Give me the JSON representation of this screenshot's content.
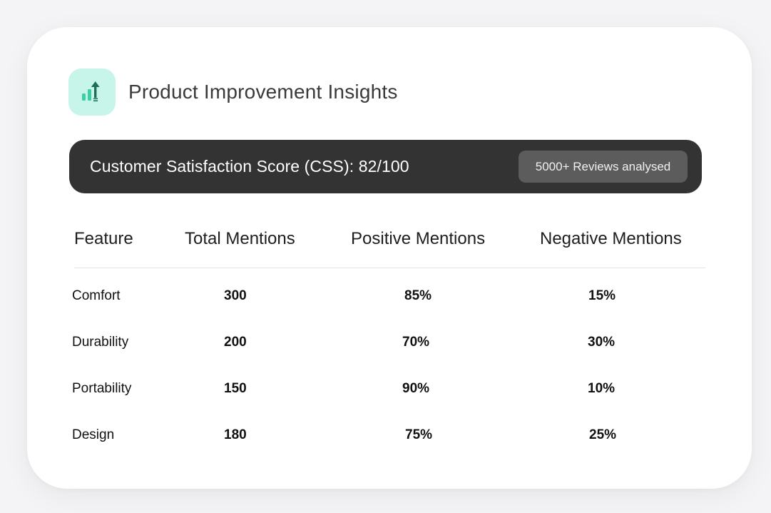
{
  "header": {
    "title": "Product Improvement Insights",
    "icon": "rising-bar-chart-icon",
    "icon_bg": "#c8f5ea",
    "icon_color": "#1f8f6f"
  },
  "score_bar": {
    "text": "Customer Satisfaction Score (CSS): 82/100",
    "badge": "5000+ Reviews analysed",
    "bg": "#333333"
  },
  "table": {
    "headers": [
      "Feature",
      "Total Mentions",
      "Positive Mentions",
      "Negative Mentions"
    ],
    "rows": [
      {
        "feature": "Comfort",
        "total": "300",
        "positive": "85%",
        "negative": "15%"
      },
      {
        "feature": "Durability",
        "total": "200",
        "positive": "70%",
        "negative": "30%"
      },
      {
        "feature": "Portability",
        "total": "150",
        "positive": "90%",
        "negative": "10%"
      },
      {
        "feature": "Design",
        "total": "180",
        "positive": "75%",
        "negative": "25%"
      }
    ]
  }
}
